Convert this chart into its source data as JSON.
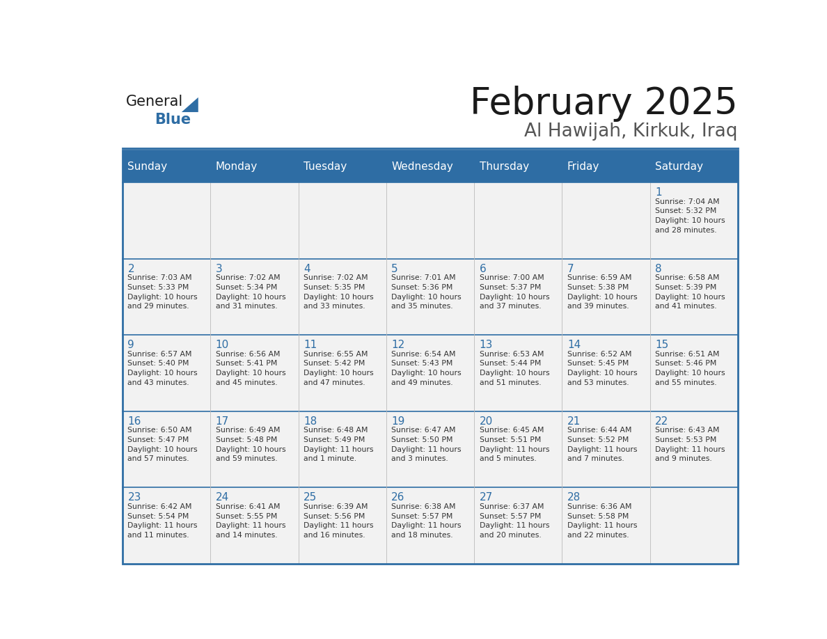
{
  "title": "February 2025",
  "subtitle": "Al Hawijah, Kirkuk, Iraq",
  "days_of_week": [
    "Sunday",
    "Monday",
    "Tuesday",
    "Wednesday",
    "Thursday",
    "Friday",
    "Saturday"
  ],
  "header_bg": "#2E6DA4",
  "header_text": "#FFFFFF",
  "cell_bg": "#F2F2F2",
  "border_color": "#2E6DA4",
  "title_color": "#1a1a1a",
  "subtitle_color": "#555555",
  "day_num_color": "#2E6DA4",
  "info_color": "#333333",
  "logo_blue_color": "#2E6DA4",
  "calendar_data": [
    [
      null,
      null,
      null,
      null,
      null,
      null,
      {
        "day": 1,
        "sunrise": "7:04 AM",
        "sunset": "5:32 PM",
        "daylight": "10 hours\nand 28 minutes."
      }
    ],
    [
      {
        "day": 2,
        "sunrise": "7:03 AM",
        "sunset": "5:33 PM",
        "daylight": "10 hours\nand 29 minutes."
      },
      {
        "day": 3,
        "sunrise": "7:02 AM",
        "sunset": "5:34 PM",
        "daylight": "10 hours\nand 31 minutes."
      },
      {
        "day": 4,
        "sunrise": "7:02 AM",
        "sunset": "5:35 PM",
        "daylight": "10 hours\nand 33 minutes."
      },
      {
        "day": 5,
        "sunrise": "7:01 AM",
        "sunset": "5:36 PM",
        "daylight": "10 hours\nand 35 minutes."
      },
      {
        "day": 6,
        "sunrise": "7:00 AM",
        "sunset": "5:37 PM",
        "daylight": "10 hours\nand 37 minutes."
      },
      {
        "day": 7,
        "sunrise": "6:59 AM",
        "sunset": "5:38 PM",
        "daylight": "10 hours\nand 39 minutes."
      },
      {
        "day": 8,
        "sunrise": "6:58 AM",
        "sunset": "5:39 PM",
        "daylight": "10 hours\nand 41 minutes."
      }
    ],
    [
      {
        "day": 9,
        "sunrise": "6:57 AM",
        "sunset": "5:40 PM",
        "daylight": "10 hours\nand 43 minutes."
      },
      {
        "day": 10,
        "sunrise": "6:56 AM",
        "sunset": "5:41 PM",
        "daylight": "10 hours\nand 45 minutes."
      },
      {
        "day": 11,
        "sunrise": "6:55 AM",
        "sunset": "5:42 PM",
        "daylight": "10 hours\nand 47 minutes."
      },
      {
        "day": 12,
        "sunrise": "6:54 AM",
        "sunset": "5:43 PM",
        "daylight": "10 hours\nand 49 minutes."
      },
      {
        "day": 13,
        "sunrise": "6:53 AM",
        "sunset": "5:44 PM",
        "daylight": "10 hours\nand 51 minutes."
      },
      {
        "day": 14,
        "sunrise": "6:52 AM",
        "sunset": "5:45 PM",
        "daylight": "10 hours\nand 53 minutes."
      },
      {
        "day": 15,
        "sunrise": "6:51 AM",
        "sunset": "5:46 PM",
        "daylight": "10 hours\nand 55 minutes."
      }
    ],
    [
      {
        "day": 16,
        "sunrise": "6:50 AM",
        "sunset": "5:47 PM",
        "daylight": "10 hours\nand 57 minutes."
      },
      {
        "day": 17,
        "sunrise": "6:49 AM",
        "sunset": "5:48 PM",
        "daylight": "10 hours\nand 59 minutes."
      },
      {
        "day": 18,
        "sunrise": "6:48 AM",
        "sunset": "5:49 PM",
        "daylight": "11 hours\nand 1 minute."
      },
      {
        "day": 19,
        "sunrise": "6:47 AM",
        "sunset": "5:50 PM",
        "daylight": "11 hours\nand 3 minutes."
      },
      {
        "day": 20,
        "sunrise": "6:45 AM",
        "sunset": "5:51 PM",
        "daylight": "11 hours\nand 5 minutes."
      },
      {
        "day": 21,
        "sunrise": "6:44 AM",
        "sunset": "5:52 PM",
        "daylight": "11 hours\nand 7 minutes."
      },
      {
        "day": 22,
        "sunrise": "6:43 AM",
        "sunset": "5:53 PM",
        "daylight": "11 hours\nand 9 minutes."
      }
    ],
    [
      {
        "day": 23,
        "sunrise": "6:42 AM",
        "sunset": "5:54 PM",
        "daylight": "11 hours\nand 11 minutes."
      },
      {
        "day": 24,
        "sunrise": "6:41 AM",
        "sunset": "5:55 PM",
        "daylight": "11 hours\nand 14 minutes."
      },
      {
        "day": 25,
        "sunrise": "6:39 AM",
        "sunset": "5:56 PM",
        "daylight": "11 hours\nand 16 minutes."
      },
      {
        "day": 26,
        "sunrise": "6:38 AM",
        "sunset": "5:57 PM",
        "daylight": "11 hours\nand 18 minutes."
      },
      {
        "day": 27,
        "sunrise": "6:37 AM",
        "sunset": "5:57 PM",
        "daylight": "11 hours\nand 20 minutes."
      },
      {
        "day": 28,
        "sunrise": "6:36 AM",
        "sunset": "5:58 PM",
        "daylight": "11 hours\nand 22 minutes."
      },
      null
    ]
  ]
}
